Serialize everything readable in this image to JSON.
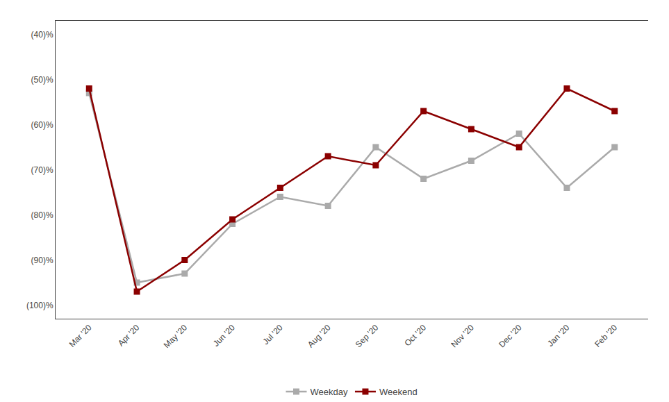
{
  "chart_data": {
    "type": "line",
    "categories": [
      "Mar '20",
      "Apr '20",
      "May '20",
      "Jun '20",
      "Jul '20",
      "Aug '20",
      "Sep '20",
      "Oct '20",
      "Nov '20",
      "Dec '20",
      "Jan '20",
      "Feb '20"
    ],
    "series": [
      {
        "name": "Weekday",
        "color": "#aaaaaa",
        "values": [
          -53,
          -95,
          -93,
          -82,
          -76,
          -78,
          -65,
          -72,
          -68,
          -62,
          -74,
          -65
        ]
      },
      {
        "name": "Weekend",
        "color": "#8b0000",
        "values": [
          -52,
          -97,
          -90,
          -81,
          -74,
          -67,
          -69,
          -57,
          -61,
          -65,
          -52,
          -57
        ]
      }
    ],
    "ylim": [
      -103,
      -37
    ],
    "yticks": [
      {
        "value": -40,
        "label": "(40)%"
      },
      {
        "value": -50,
        "label": "(50)%"
      },
      {
        "value": -60,
        "label": "(60)%"
      },
      {
        "value": -70,
        "label": "(70)%"
      },
      {
        "value": -80,
        "label": "(80)%"
      },
      {
        "value": -90,
        "label": "(90)%"
      },
      {
        "value": -100,
        "label": "(100)%"
      }
    ],
    "grid": false,
    "legend": "bottom",
    "marker": "square",
    "line_style": "solid"
  }
}
